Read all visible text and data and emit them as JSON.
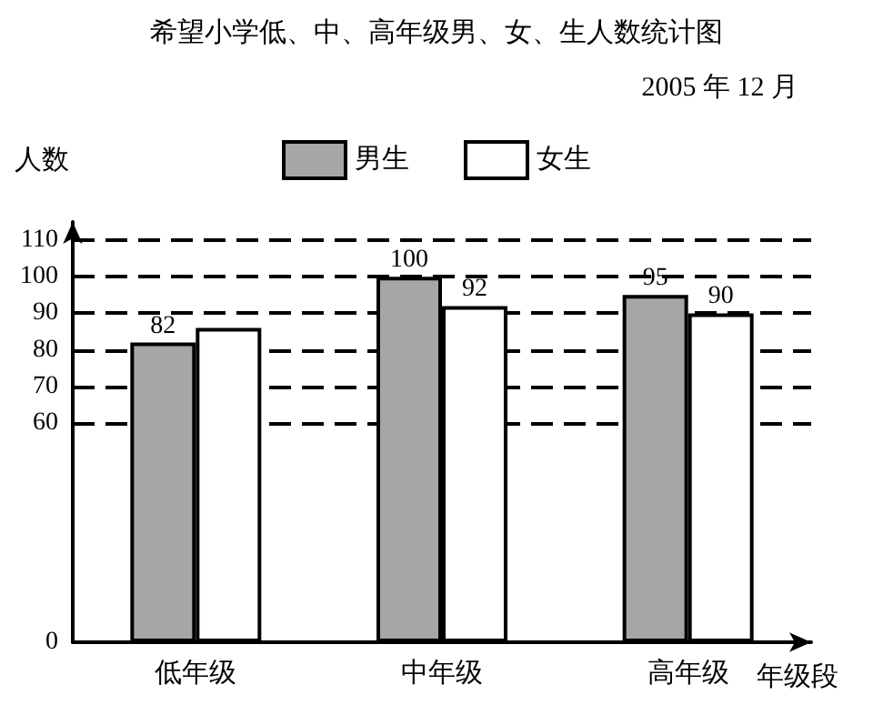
{
  "chart_data": {
    "type": "bar",
    "title": "希望小学低、中、高年级男、女、生人数统计图",
    "subtitle": "2005 年 12 月",
    "xlabel": "年级段",
    "ylabel": "人数",
    "categories": [
      "低年级",
      "中年级",
      "高年级"
    ],
    "series": [
      {
        "name": "男生",
        "color": "#a6a6a6",
        "values": [
          82,
          100,
          95
        ],
        "value_labels": [
          "82",
          "100",
          "95"
        ]
      },
      {
        "name": "女生",
        "color": "#ffffff",
        "values": [
          86,
          92,
          90
        ],
        "value_labels": [
          null,
          "92",
          "90"
        ]
      }
    ],
    "ylim": [
      0,
      115
    ],
    "yticks": [
      0,
      60,
      70,
      80,
      90,
      100,
      110
    ],
    "grid": "y",
    "legend": "top"
  }
}
